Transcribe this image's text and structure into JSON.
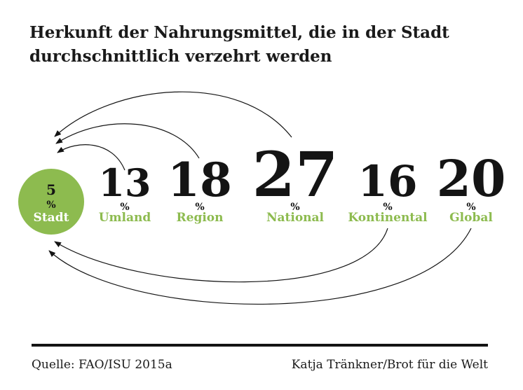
{
  "title_lines": [
    "Herkunft der Nahrungsmittel, die in der Stadt",
    "durchschnittlich verzehrt werden"
  ],
  "chart_data": {
    "type": "bubble-flow",
    "title": "Herkunft der Nahrungsmittel, die in der Stadt durchschnittlich verzehrt werden",
    "unit": "%",
    "categories": [
      "Stadt",
      "Umland",
      "Region",
      "National",
      "Kontinental",
      "Global"
    ],
    "values": [
      5,
      13,
      18,
      27,
      16,
      20
    ],
    "target": "Stadt",
    "colors": {
      "accent": "#8dbb4f",
      "text": "#141414",
      "arrow": "#141414"
    }
  },
  "footer": {
    "source": "Quelle: FAO/ISU 2015a",
    "credit": "Katja Tränkner/Brot für die Welt"
  }
}
